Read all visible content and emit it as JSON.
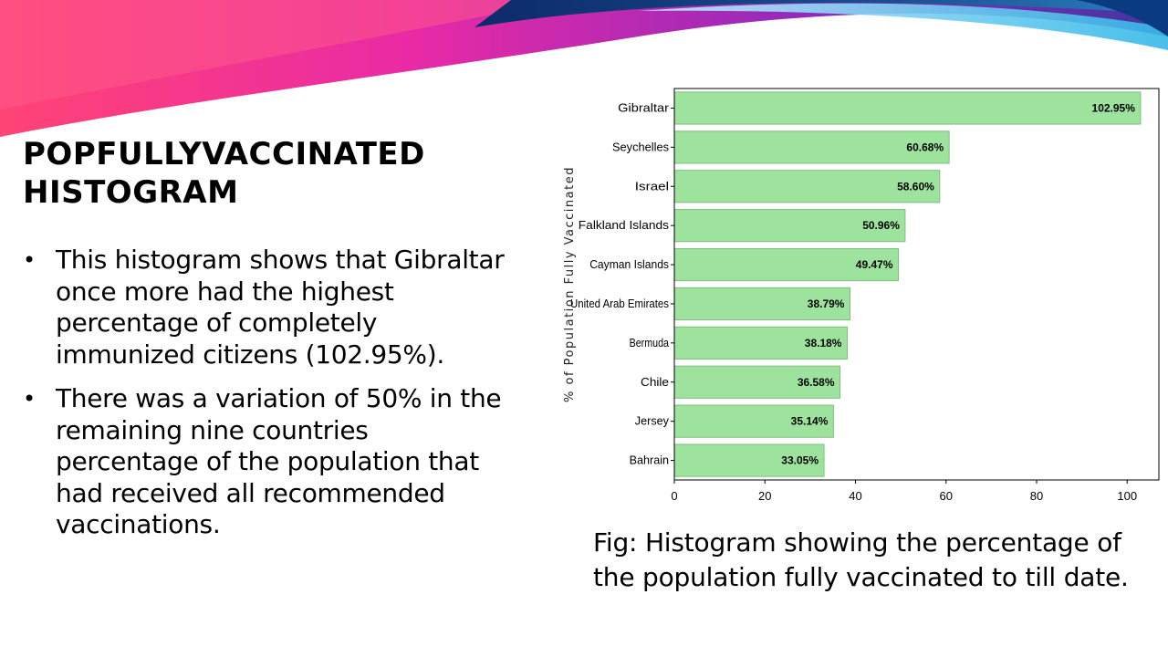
{
  "slide": {
    "title": "PopFullyVaccinated Histogram",
    "bullets": [
      "This histogram shows that Gibraltar once more had the highest percentage of completely immunized citizens (102.95%).",
      "There was a variation of 50% in the remaining nine countries percentage of the population that had received all recommended vaccinations."
    ],
    "caption": "Fig: Histogram showing the percentage of the population fully vaccinated to till date."
  },
  "colors": {
    "bar_fill": "#9de39d",
    "bar_edge": "#7fbf7f",
    "banner_magenta": "#e81fa0",
    "banner_blue": "#1a4f8f",
    "banner_cyan": "#35b8e8"
  },
  "chart_data": {
    "type": "bar",
    "orientation": "horizontal",
    "categories": [
      "Gibraltar",
      "Seychelles",
      "Israel",
      "Falkland Islands",
      "Cayman Islands",
      "United Arab Emirates",
      "Bermuda",
      "Chile",
      "Jersey",
      "Bahrain"
    ],
    "values": [
      102.95,
      60.68,
      58.6,
      50.96,
      49.47,
      38.79,
      38.18,
      36.58,
      35.14,
      33.05
    ],
    "data_labels": [
      "102.95%",
      "60.68%",
      "58.60%",
      "50.96%",
      "49.47%",
      "38.79%",
      "38.18%",
      "36.58%",
      "35.14%",
      "33.05%"
    ],
    "title": "",
    "xlabel": "",
    "ylabel": "% of Population Fully Vaccinated",
    "xlim": [
      0,
      107
    ],
    "xticks": [
      0,
      20,
      40,
      60,
      80,
      100
    ],
    "grid": false,
    "legend": "none"
  }
}
